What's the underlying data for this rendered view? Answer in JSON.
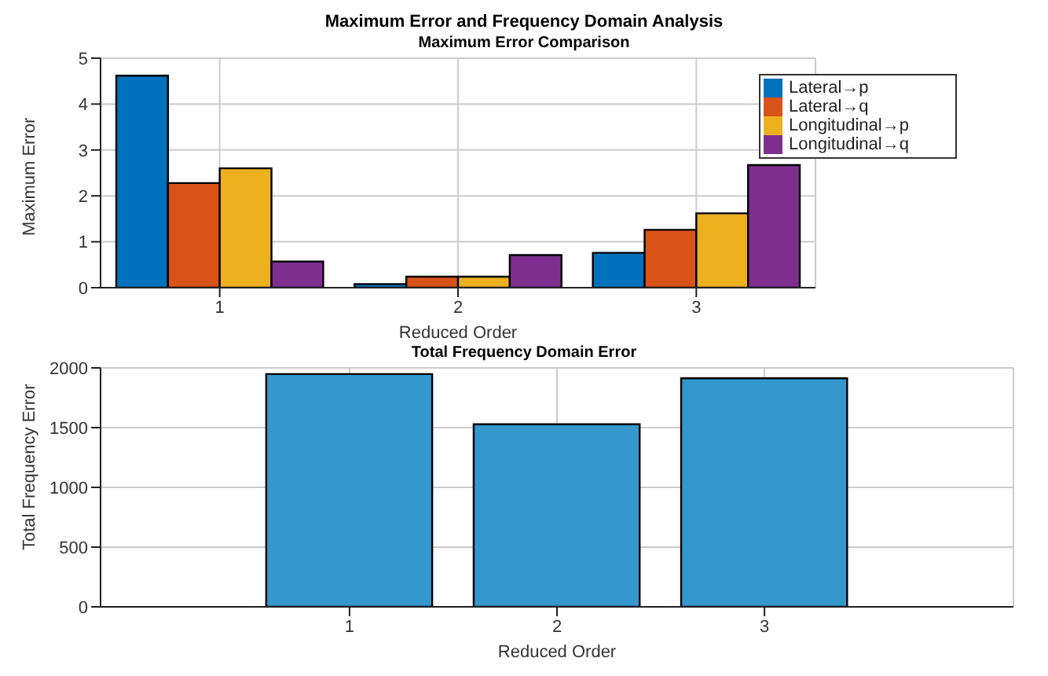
{
  "chart_data": [
    {
      "type": "bar",
      "title": "Maximum Error and Frequency Domain Analysis",
      "subtitle": "Maximum Error Comparison",
      "xlabel": "Reduced Order",
      "ylabel": "Maximum Error",
      "x": [
        1,
        2,
        3
      ],
      "xlim": [
        0.5,
        3.5
      ],
      "xticks": [
        1,
        2,
        3
      ],
      "ylim": [
        0,
        5
      ],
      "yticks": [
        0,
        1,
        2,
        3,
        4,
        5
      ],
      "grid": true,
      "legend": "top right",
      "series": [
        {
          "name": "Lateral→p",
          "color": "#0072bd",
          "values": [
            4.62,
            0.08,
            0.76
          ]
        },
        {
          "name": "Lateral→q",
          "color": "#d95319",
          "values": [
            2.28,
            0.24,
            1.26
          ]
        },
        {
          "name": "Longitudinal→p",
          "color": "#edb120",
          "values": [
            2.6,
            0.24,
            1.62
          ]
        },
        {
          "name": "Longitudinal→q",
          "color": "#7e2f8e",
          "values": [
            0.57,
            0.71,
            2.67
          ]
        }
      ]
    },
    {
      "type": "bar",
      "title": "Total Frequency Domain Error",
      "xlabel": "Reduced Order",
      "ylabel": "Total Frequency Error",
      "x": [
        1,
        2,
        3
      ],
      "xlim": [
        -0.2,
        4.2
      ],
      "xticks": [
        1,
        2,
        3
      ],
      "ylim": [
        0,
        2000
      ],
      "yticks": [
        0,
        500,
        1000,
        1500,
        2000
      ],
      "grid": true,
      "values": [
        1948,
        1528,
        1913
      ],
      "color": "#3497cd"
    }
  ]
}
